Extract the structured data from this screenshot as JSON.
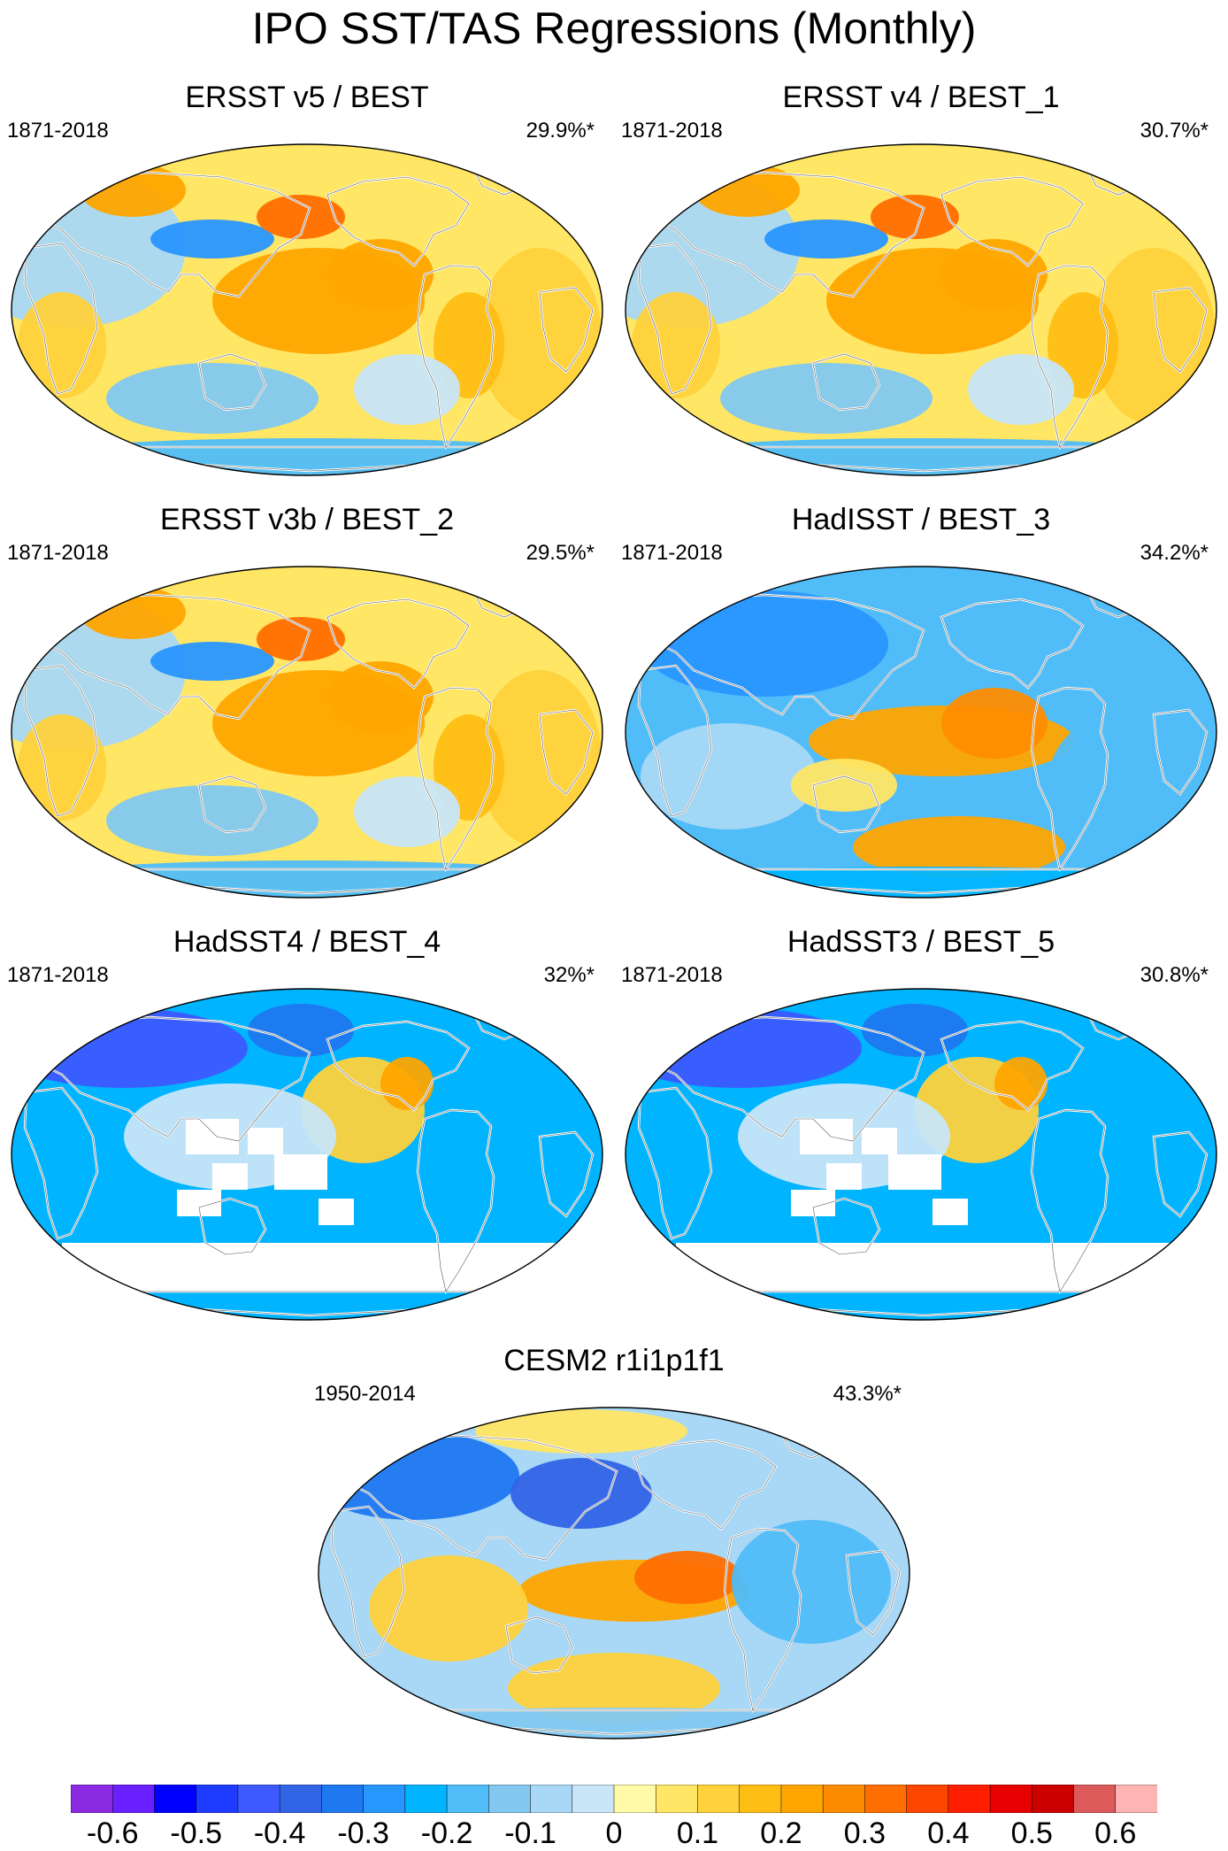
{
  "figure": {
    "title": "IPO SST/TAS Regressions (Monthly)"
  },
  "panels": [
    {
      "title": "ERSST v5 / BEST",
      "years": "1871-2018",
      "pct": "29.9%*",
      "style": "ersst"
    },
    {
      "title": "ERSST v4 / BEST_1",
      "years": "1871-2018",
      "pct": "30.7%*",
      "style": "ersst"
    },
    {
      "title": "ERSST v3b / BEST_2",
      "years": "1871-2018",
      "pct": "29.5%*",
      "style": "ersst"
    },
    {
      "title": "HadISST / BEST_3",
      "years": "1871-2018",
      "pct": "34.2%*",
      "style": "hadisst"
    },
    {
      "title": "HadSST4 / BEST_4",
      "years": "1871-2018",
      "pct": "32%*",
      "style": "hadsst"
    },
    {
      "title": "HadSST3 / BEST_5",
      "years": "1871-2018",
      "pct": "30.8%*",
      "style": "hadsst"
    },
    {
      "title": "CESM2 r1i1p1f1",
      "years": "1950-2014",
      "pct": "43.3%*",
      "style": "cesm"
    }
  ],
  "colorbar": {
    "colors": [
      "#8a2be2",
      "#6a1fff",
      "#0000ff",
      "#1e3cff",
      "#3c5aff",
      "#3264e6",
      "#1e78f0",
      "#2896ff",
      "#00b4ff",
      "#50bcf8",
      "#82c8f0",
      "#a8d8f6",
      "#c8e6f8",
      "#fffaa8",
      "#ffe664",
      "#ffd23c",
      "#ffbe14",
      "#ffa500",
      "#ff8c00",
      "#ff6e00",
      "#ff4600",
      "#ff1e00",
      "#e60000",
      "#cd0000",
      "#dc5a5a",
      "#ffb4b4"
    ],
    "labels": [
      "-0.6",
      "-0.5",
      "-0.4",
      "-0.3",
      "-0.2",
      "-0.1",
      "0",
      "0.1",
      "0.2",
      "0.3",
      "0.4",
      "0.5",
      "0.6"
    ]
  }
}
